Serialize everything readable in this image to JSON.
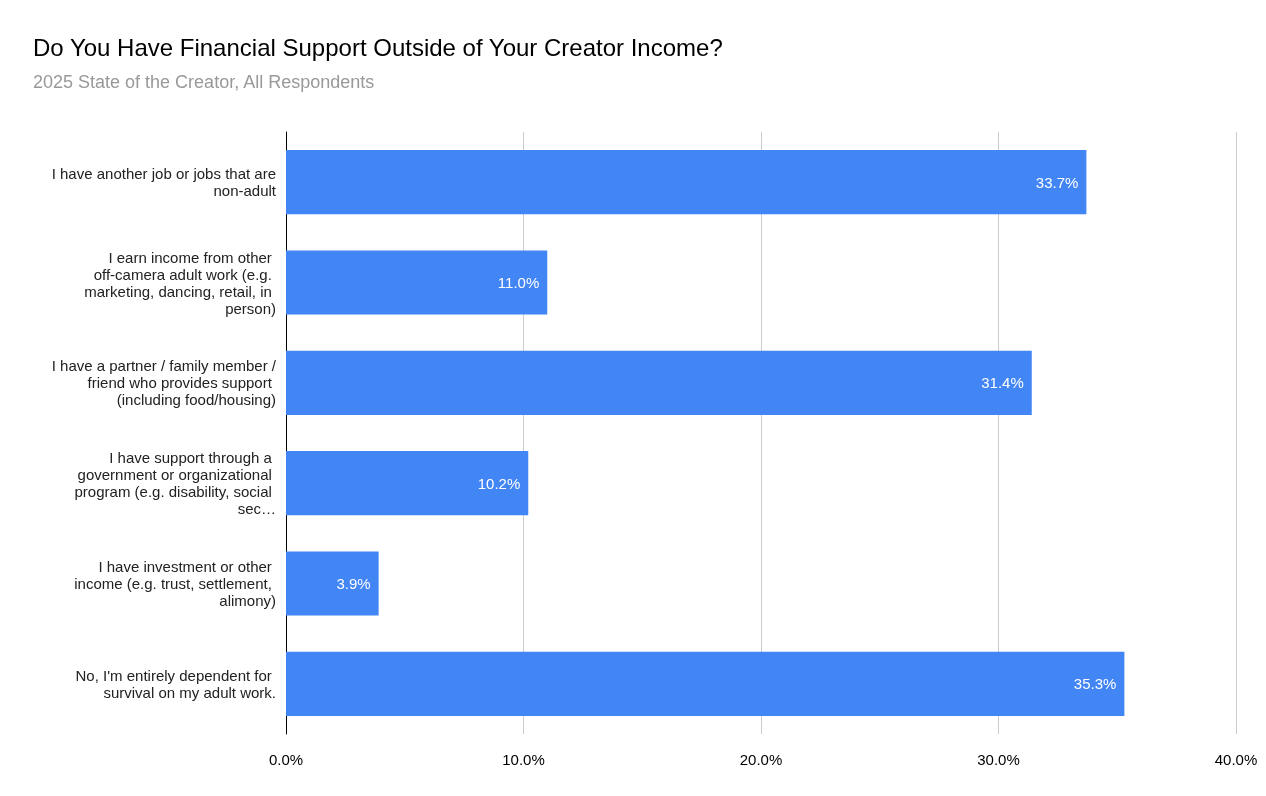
{
  "chart_data": {
    "type": "bar",
    "orientation": "horizontal",
    "title": "Do You Have Financial Support Outside of Your Creator Income?",
    "subtitle": "2025 State of the Creator, All Respondents",
    "categories": [
      "I have another job or jobs that are non-adult",
      "I earn income from other off-camera adult work (e.g. marketing, dancing, retail, in person)",
      "I have a partner / family member / friend who provides support (including food/housing)",
      "I have support through a government or organizational program (e.g. disability, social sec…",
      "I have investment or other income (e.g. trust, settlement, alimony)",
      "No, I'm entirely dependent for survival on my adult work."
    ],
    "values": [
      33.7,
      11.0,
      31.4,
      10.2,
      3.9,
      35.3
    ],
    "value_labels": [
      "33.7%",
      "11.0%",
      "31.4%",
      "10.2%",
      "3.9%",
      "35.3%"
    ],
    "color": "#4285f4",
    "xlim": [
      0,
      40
    ],
    "xticks": [
      {
        "value": 0,
        "label": "0.0%"
      },
      {
        "value": 10,
        "label": "10.0%"
      },
      {
        "value": 20,
        "label": "20.0%"
      },
      {
        "value": 30,
        "label": "30.0%"
      },
      {
        "value": 40,
        "label": "40.0%"
      }
    ],
    "grid": "x"
  }
}
